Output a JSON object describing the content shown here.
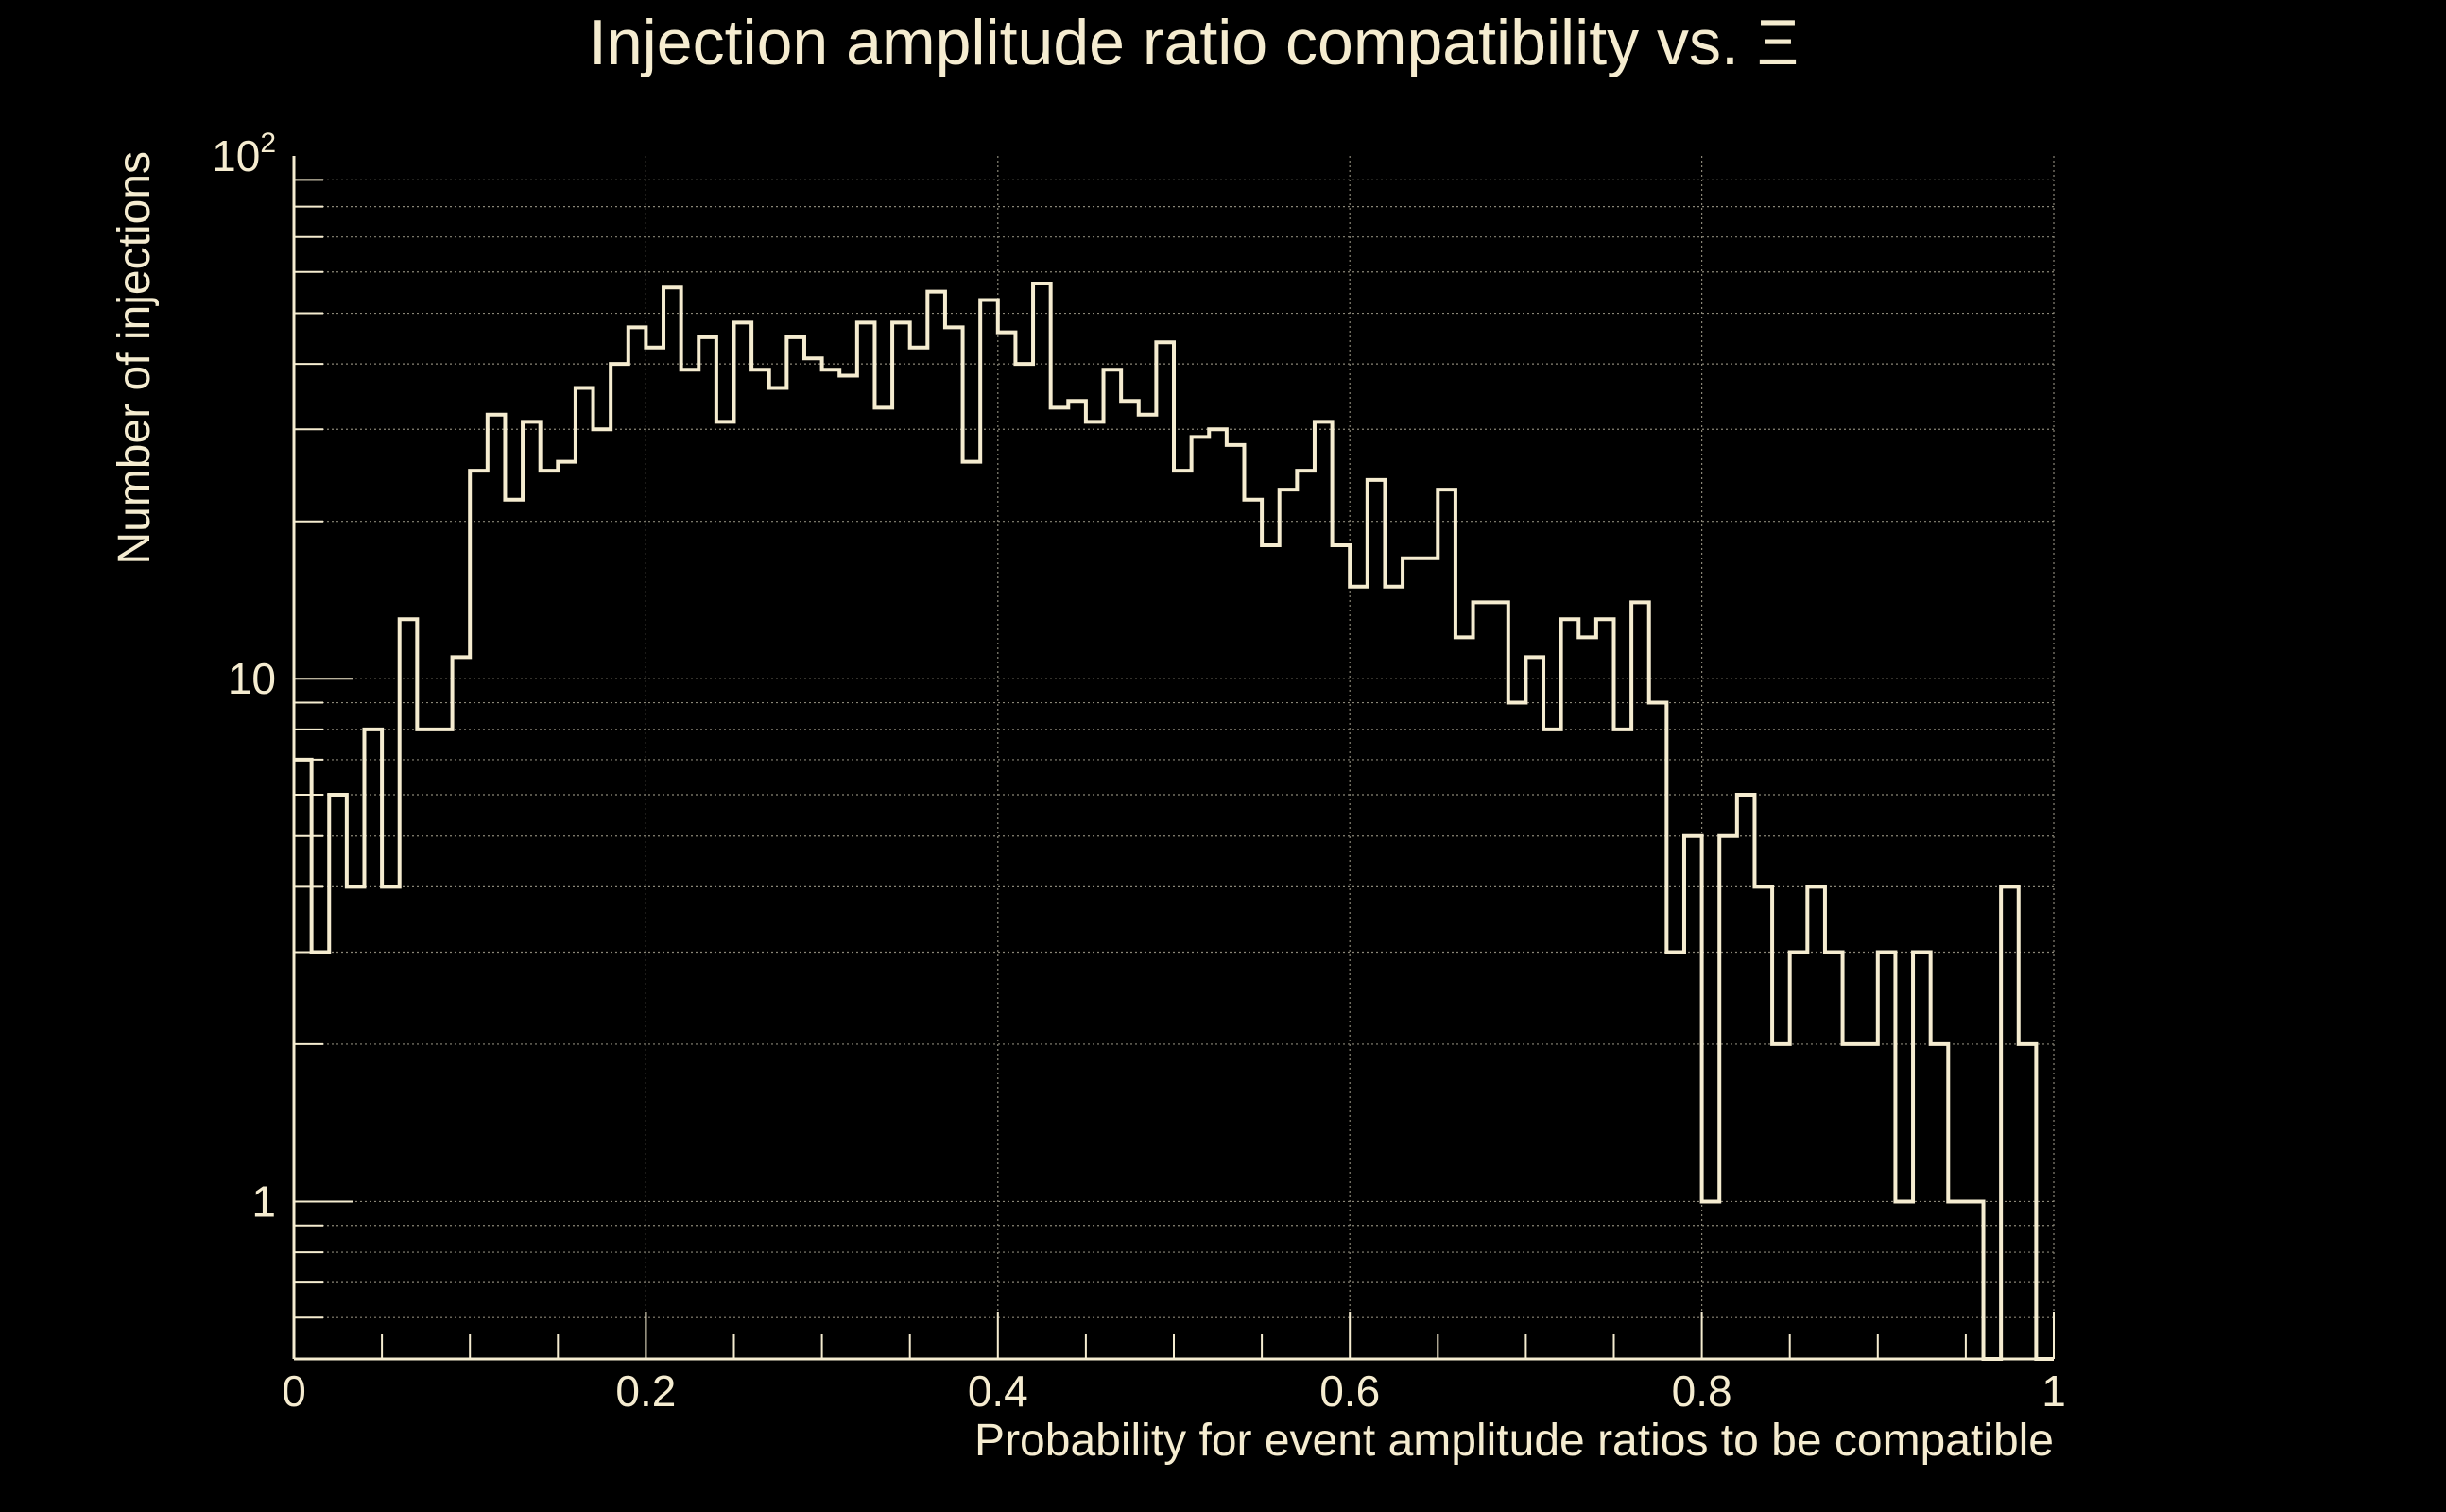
{
  "chart_data": {
    "type": "histogram",
    "title": "Injection amplitude ratio compatibility vs.  Ξ",
    "xlabel": "Probability for event amplitude ratios to be compatible",
    "ylabel": "Number of injections",
    "x_scale": "linear",
    "y_scale": "log",
    "xlim": [
      0,
      1
    ],
    "ylim": [
      0.5,
      100
    ],
    "grid": true,
    "bin_width": 0.01,
    "x_ticks": [
      {
        "value": 0,
        "label": "0"
      },
      {
        "value": 0.2,
        "label": "0.2"
      },
      {
        "value": 0.4,
        "label": "0.4"
      },
      {
        "value": 0.6,
        "label": "0.6"
      },
      {
        "value": 0.8,
        "label": "0.8"
      },
      {
        "value": 1,
        "label": "1"
      }
    ],
    "y_ticks": [
      {
        "value": 1,
        "label": "1",
        "sup": ""
      },
      {
        "value": 10,
        "label": "10",
        "sup": ""
      },
      {
        "value": 100,
        "label": "10",
        "sup": "2"
      }
    ],
    "counts": [
      7,
      3,
      6,
      4,
      8,
      4,
      13,
      8,
      8,
      11,
      25,
      32,
      22,
      31,
      25,
      26,
      36,
      30,
      40,
      47,
      43,
      56,
      39,
      45,
      31,
      48,
      39,
      36,
      45,
      41,
      39,
      38,
      48,
      33,
      48,
      43,
      55,
      47,
      26,
      53,
      46,
      40,
      57,
      33,
      34,
      31,
      39,
      34,
      32,
      44,
      25,
      29,
      30,
      28,
      22,
      18,
      23,
      25,
      31,
      18,
      15,
      24,
      15,
      17,
      17,
      23,
      12,
      14,
      14,
      9,
      11,
      8,
      13,
      12,
      13,
      8,
      14,
      9,
      3,
      5,
      1,
      5,
      6,
      4,
      2,
      3,
      4,
      3,
      2,
      2,
      3,
      1,
      3,
      2,
      1,
      1,
      0,
      4,
      2,
      0
    ],
    "colors": {
      "background": "#000000",
      "foreground": "#f5ecd0",
      "grid": "#8a8677"
    }
  }
}
